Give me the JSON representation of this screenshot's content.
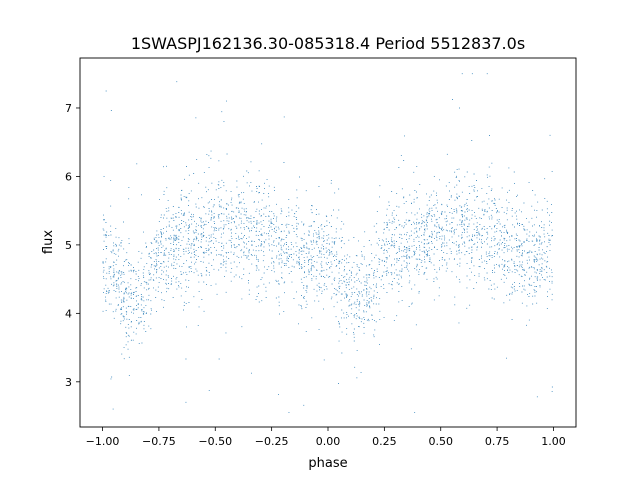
{
  "chart_data": {
    "type": "scatter",
    "title": "1SWASPJ162136.30-085318.4 Period 5512837.0s",
    "xlabel": "phase",
    "ylabel": "flux",
    "xlim": [
      -1.1,
      1.1
    ],
    "ylim": [
      2.34,
      7.73
    ],
    "xticks": [
      -1.0,
      -0.75,
      -0.5,
      -0.25,
      0.0,
      0.25,
      0.5,
      0.75,
      1.0
    ],
    "xtick_labels": [
      "−1.00",
      "−0.75",
      "−0.50",
      "−0.25",
      "0.00",
      "0.25",
      "0.50",
      "0.75",
      "1.00"
    ],
    "yticks": [
      3,
      4,
      5,
      6,
      7
    ],
    "ytick_labels": [
      "3",
      "4",
      "5",
      "6",
      "7"
    ],
    "grid": false,
    "marker_color": "#1f77b4",
    "folded_profile": {
      "phase": [
        0.0,
        0.05,
        0.1,
        0.15,
        0.2,
        0.25,
        0.3,
        0.4,
        0.5,
        0.6,
        0.7,
        0.8,
        0.9,
        1.0
      ],
      "mean_flux": [
        4.9,
        4.55,
        4.25,
        4.2,
        4.35,
        4.95,
        5.0,
        5.0,
        5.2,
        5.2,
        5.1,
        5.0,
        4.85,
        4.9
      ],
      "scatter_sigma": 0.35
    },
    "n_points": 9000
  }
}
